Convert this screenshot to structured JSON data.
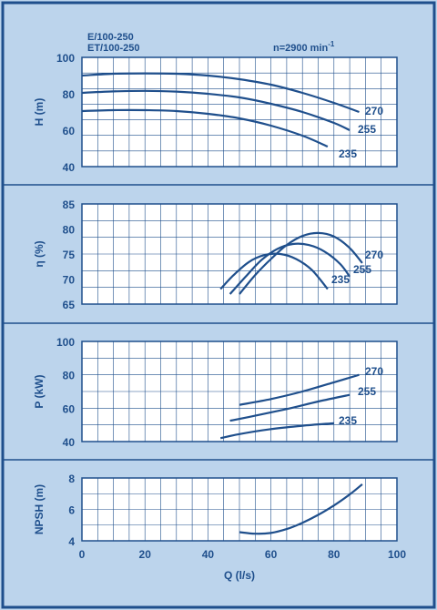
{
  "colors": {
    "background": "#bcd4ec",
    "plot_area": "#ffffff",
    "border": "#1f4f8c",
    "curve": "#1f4f8c",
    "text": "#1f4f8c"
  },
  "header": {
    "model_line1": "E/100-250",
    "model_line2": "ET/100-250",
    "speed_label": "n=2900 min",
    "speed_exp": "-1"
  },
  "chart_data": [
    {
      "type": "line",
      "ylabel": "H (m)",
      "ylim": [
        40,
        100
      ],
      "yticks": [
        40,
        60,
        80,
        100
      ],
      "xlim": [
        0,
        100
      ],
      "grid": true,
      "series": [
        {
          "name": "270",
          "x": [
            0,
            10,
            20,
            30,
            40,
            50,
            60,
            70,
            80,
            88
          ],
          "values": [
            90,
            91,
            91.2,
            91,
            90,
            88,
            85,
            80.5,
            75,
            70
          ]
        },
        {
          "name": "255",
          "x": [
            0,
            10,
            20,
            30,
            40,
            50,
            60,
            70,
            80,
            85
          ],
          "values": [
            80.5,
            81.3,
            81.6,
            81.2,
            80,
            78,
            74.5,
            70,
            64,
            60
          ]
        },
        {
          "name": "235",
          "x": [
            0,
            10,
            20,
            30,
            40,
            50,
            60,
            70,
            78
          ],
          "values": [
            70.5,
            71,
            71,
            70.5,
            69,
            66.5,
            62.5,
            57,
            51
          ]
        }
      ]
    },
    {
      "type": "line",
      "ylabel": "η (%)",
      "ylim": [
        65,
        85
      ],
      "yticks": [
        65,
        70,
        75,
        80,
        85
      ],
      "xlim": [
        0,
        100
      ],
      "grid": true,
      "series": [
        {
          "name": "270",
          "x": [
            50,
            55,
            60,
            65,
            70,
            75,
            80,
            85,
            89
          ],
          "values": [
            67,
            70.8,
            74,
            76.8,
            78.6,
            79.2,
            78.5,
            76.2,
            73.2
          ]
        },
        {
          "name": "255",
          "x": [
            47,
            52,
            57,
            62,
            67,
            72,
            77,
            82,
            85
          ],
          "values": [
            67,
            70.5,
            73.8,
            76,
            77,
            76.8,
            75.5,
            73,
            70.5
          ]
        },
        {
          "name": "235",
          "x": [
            44,
            48,
            53,
            58,
            63,
            68,
            73,
            78
          ],
          "values": [
            68,
            70.7,
            73.4,
            74.8,
            75,
            74,
            71.8,
            68
          ]
        }
      ]
    },
    {
      "type": "line",
      "ylabel": "P (kW)",
      "ylim": [
        40,
        100
      ],
      "yticks": [
        40,
        60,
        80,
        100
      ],
      "xlim": [
        0,
        100
      ],
      "grid": true,
      "series": [
        {
          "name": "270",
          "x": [
            50,
            60,
            70,
            80,
            88
          ],
          "values": [
            62,
            65.5,
            70,
            75.5,
            80
          ]
        },
        {
          "name": "255",
          "x": [
            47,
            55,
            65,
            75,
            85
          ],
          "values": [
            52.5,
            55.5,
            59.5,
            64,
            68
          ]
        },
        {
          "name": "235",
          "x": [
            44,
            50,
            60,
            70,
            80
          ],
          "values": [
            42,
            44.5,
            47.5,
            49.5,
            51
          ]
        }
      ]
    },
    {
      "type": "line",
      "ylabel": "NPSH (m)",
      "xlabel": "Q (l/s)",
      "ylim": [
        4,
        8
      ],
      "yticks": [
        4,
        6,
        8
      ],
      "xlim": [
        0,
        100
      ],
      "xticks": [
        0,
        20,
        40,
        60,
        80,
        100
      ],
      "grid": true,
      "series": [
        {
          "x": [
            50,
            55,
            60,
            65,
            70,
            75,
            80,
            85,
            89
          ],
          "values": [
            4.55,
            4.45,
            4.5,
            4.75,
            5.15,
            5.65,
            6.25,
            6.95,
            7.6
          ]
        }
      ]
    }
  ]
}
